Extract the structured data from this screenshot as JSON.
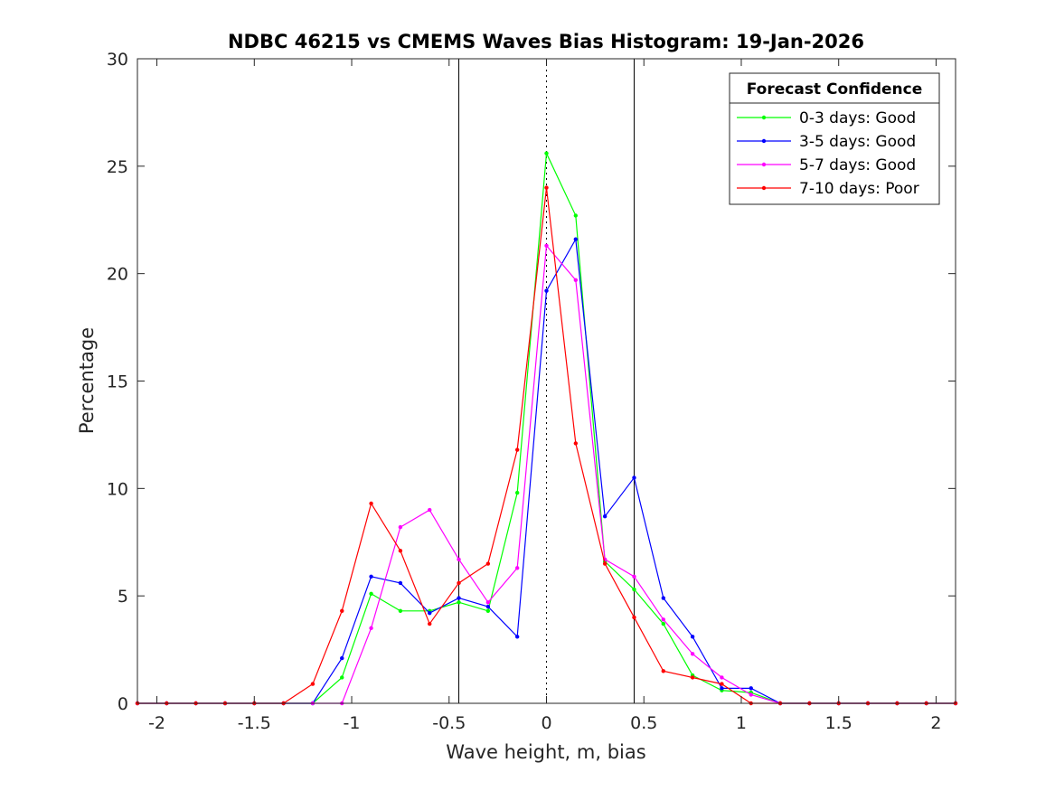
{
  "chart_data": {
    "type": "line",
    "title": "NDBC 46215 vs CMEMS Waves Bias Histogram: 19-Jan-2026",
    "xlabel": "Wave height, m, bias",
    "ylabel": "Percentage",
    "xlim": [
      -2.1,
      2.1
    ],
    "ylim": [
      0,
      30
    ],
    "xticks": [
      -2,
      -1.5,
      -1,
      -0.5,
      0,
      0.5,
      1,
      1.5,
      2
    ],
    "xtick_labels": [
      "-2",
      "-1.5",
      "-1",
      "-0.5",
      "0",
      "0.5",
      "1",
      "1.5",
      "2"
    ],
    "yticks": [
      0,
      5,
      10,
      15,
      20,
      25,
      30
    ],
    "ytick_labels": [
      "0",
      "5",
      "10",
      "15",
      "20",
      "25",
      "30"
    ],
    "grid": false,
    "legend_title": "Forecast Confidence",
    "legend_position": "top-right",
    "reference_lines": [
      {
        "x": -0.45,
        "style": "solid"
      },
      {
        "x": 0,
        "style": "dotted"
      },
      {
        "x": 0.45,
        "style": "solid"
      }
    ],
    "x": [
      -2.1,
      -1.95,
      -1.8,
      -1.65,
      -1.5,
      -1.35,
      -1.2,
      -1.05,
      -0.9,
      -0.75,
      -0.6,
      -0.45,
      -0.3,
      -0.15,
      0,
      0.15,
      0.3,
      0.45,
      0.6,
      0.75,
      0.9,
      1.05,
      1.2,
      1.35,
      1.5,
      1.65,
      1.8,
      1.95,
      2.1
    ],
    "series": [
      {
        "name": "0-3 days: Good",
        "color": "#00ff00",
        "values": [
          0,
          0,
          0,
          0,
          0,
          0,
          0,
          1.2,
          5.1,
          4.3,
          4.3,
          4.7,
          4.3,
          9.8,
          25.6,
          22.7,
          6.6,
          5.3,
          3.7,
          1.3,
          0.6,
          0.5,
          0,
          0,
          0,
          0,
          0,
          0,
          0
        ]
      },
      {
        "name": "3-5 days: Good",
        "color": "#0000ff",
        "values": [
          0,
          0,
          0,
          0,
          0,
          0,
          0,
          2.1,
          5.9,
          5.6,
          4.2,
          4.9,
          4.5,
          3.1,
          19.2,
          21.6,
          8.7,
          10.5,
          4.9,
          3.1,
          0.7,
          0.7,
          0,
          0,
          0,
          0,
          0,
          0,
          0
        ]
      },
      {
        "name": "5-7 days: Good",
        "color": "#ff00ff",
        "values": [
          0,
          0,
          0,
          0,
          0,
          0,
          0,
          0,
          3.5,
          8.2,
          9.0,
          6.7,
          4.7,
          6.3,
          21.3,
          19.7,
          6.7,
          5.9,
          3.9,
          2.3,
          1.2,
          0.4,
          0,
          0,
          0,
          0,
          0,
          0,
          0
        ]
      },
      {
        "name": "7-10 days: Poor",
        "color": "#ff0000",
        "values": [
          0,
          0,
          0,
          0,
          0,
          0,
          0.9,
          4.3,
          9.3,
          7.1,
          3.7,
          5.6,
          6.5,
          11.8,
          24.0,
          12.1,
          6.5,
          4.0,
          1.5,
          1.2,
          0.9,
          0,
          0,
          0,
          0,
          0,
          0,
          0,
          0
        ]
      }
    ]
  }
}
